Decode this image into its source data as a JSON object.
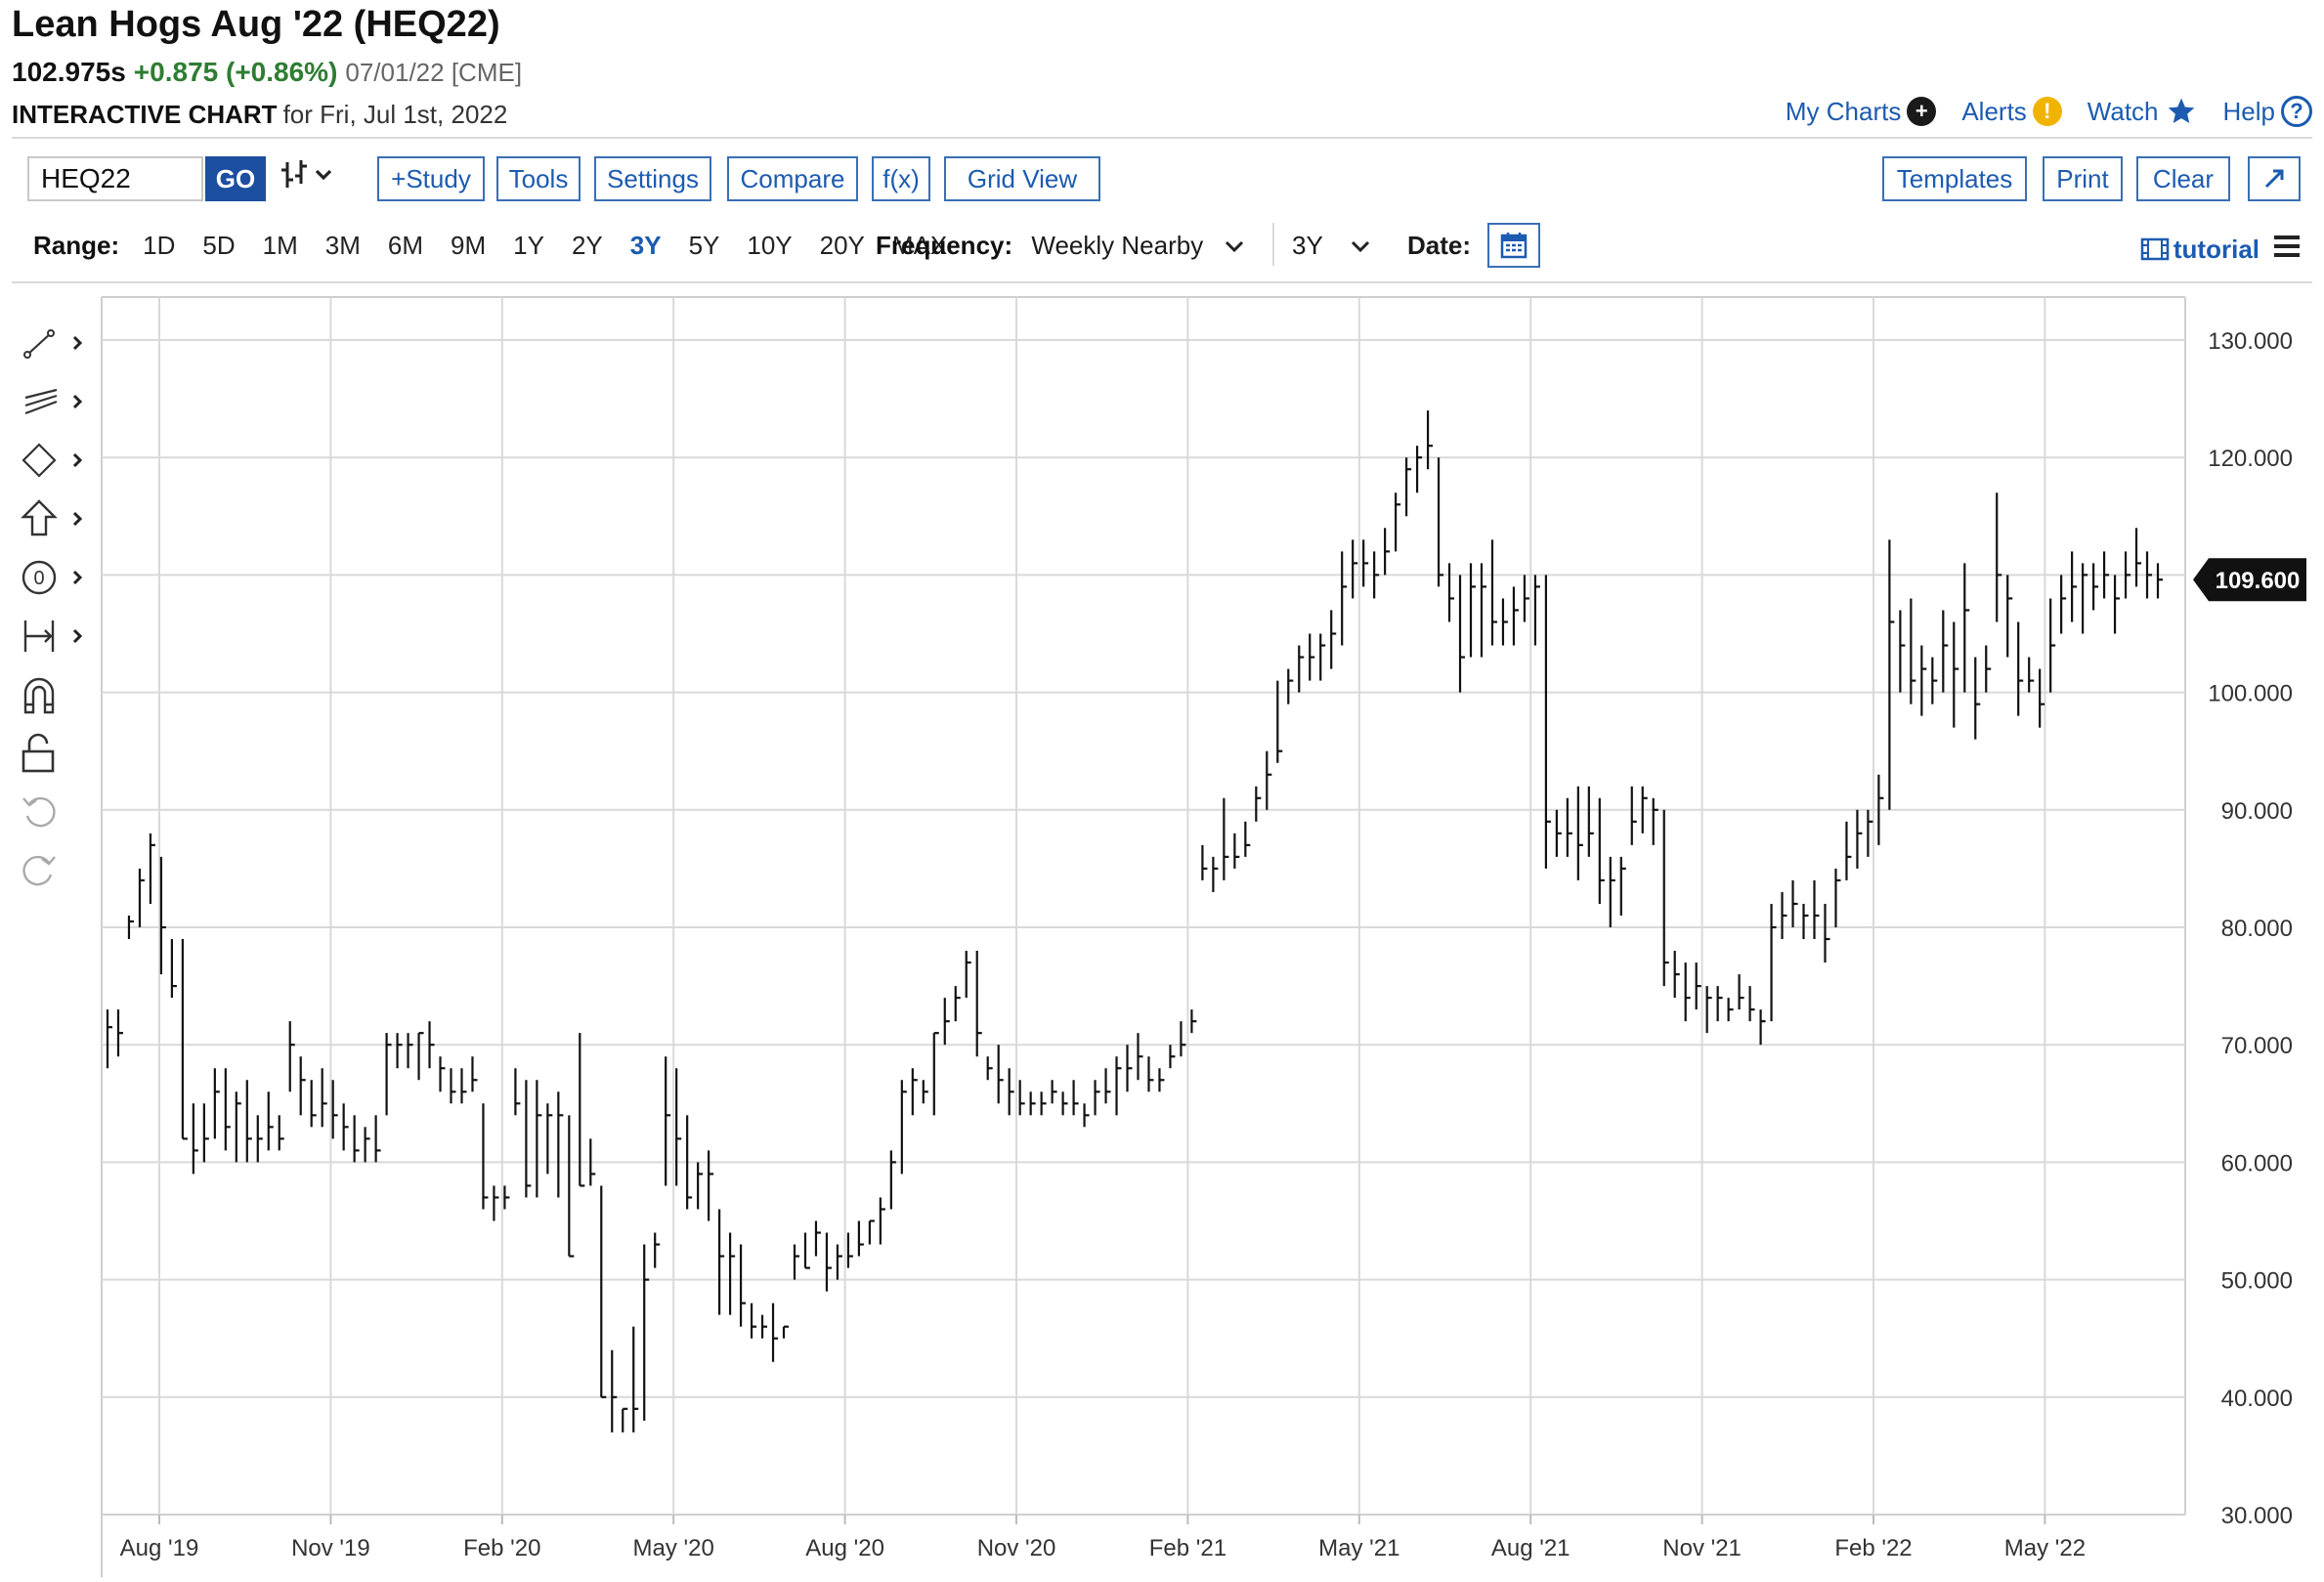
{
  "header": {
    "title": "Lean Hogs Aug '22 (HEQ22)",
    "last": "102.975s",
    "change": "+0.875 (+0.86%)",
    "meta": "07/01/22 [CME]",
    "interactive_label": "INTERACTIVE CHART",
    "date_text": "for Fri, Jul 1st, 2022"
  },
  "toplinks": {
    "my_charts": "My Charts",
    "alerts": "Alerts",
    "watch": "Watch",
    "help": "Help"
  },
  "toolbar": {
    "symbol": "HEQ22",
    "go": "GO",
    "bar_type_icon": "ohlc-bars-icon",
    "study": "+Study",
    "tools": "Tools",
    "settings": "Settings",
    "compare": "Compare",
    "fx": "f(x)",
    "grid_view": "Grid View",
    "templates": "Templates",
    "print": "Print",
    "clear": "Clear",
    "expand_icon": "expand-icon"
  },
  "range": {
    "label": "Range:",
    "options": [
      "1D",
      "5D",
      "1M",
      "3M",
      "6M",
      "9M",
      "1Y",
      "2Y",
      "3Y",
      "5Y",
      "10Y",
      "20Y",
      "MAX"
    ],
    "selected": "3Y"
  },
  "frequency": {
    "label": "Frequency:",
    "value": "Weekly Nearby",
    "period": "3Y"
  },
  "date": {
    "label": "Date:"
  },
  "tutorial": {
    "label": "tutorial"
  },
  "colors": {
    "link": "#1c5bb0",
    "change_positive": "#2e7d32",
    "grid": "#d9d9d9",
    "bars": "#111111",
    "go_button": "#1c4fa0",
    "alert": "#f0b400"
  },
  "chart_data": {
    "type": "ohlc",
    "frequency": "weekly",
    "ylim": [
      30,
      130
    ],
    "y_ticks": [
      "30.000",
      "40.000",
      "50.000",
      "60.000",
      "70.000",
      "80.000",
      "90.000",
      "100.000",
      "110.000",
      "120.000",
      "130.000"
    ],
    "x_ticks": [
      "Aug '19",
      "Nov '19",
      "Feb '20",
      "May '20",
      "Aug '20",
      "Nov '20",
      "Feb '21",
      "May '21",
      "Aug '21",
      "Nov '21",
      "Feb '22",
      "May '22"
    ],
    "last_price_label": "109.600",
    "last_price": 109.6,
    "grid": true,
    "bars": [
      [
        73,
        68,
        71.5
      ],
      [
        73,
        69,
        71
      ],
      [
        81,
        79,
        80.5
      ],
      [
        85,
        80,
        84
      ],
      [
        88,
        82,
        87
      ],
      [
        86,
        76,
        80
      ],
      [
        79,
        74,
        75
      ],
      [
        79,
        62,
        62
      ],
      [
        65,
        59,
        61
      ],
      [
        65,
        60,
        62
      ],
      [
        68,
        62,
        66
      ],
      [
        68,
        61,
        63
      ],
      [
        66,
        60,
        65
      ],
      [
        67,
        60,
        62
      ],
      [
        64,
        60,
        62
      ],
      [
        66,
        61,
        63
      ],
      [
        64,
        61,
        62
      ],
      [
        72,
        66,
        70
      ],
      [
        69,
        64,
        67
      ],
      [
        67,
        63,
        64
      ],
      [
        68,
        63,
        65
      ],
      [
        67,
        62,
        64
      ],
      [
        65,
        61,
        63
      ],
      [
        64,
        60,
        61
      ],
      [
        63,
        60,
        62
      ],
      [
        64,
        60,
        61
      ],
      [
        71,
        64,
        70
      ],
      [
        71,
        68,
        70
      ],
      [
        71,
        68,
        70
      ],
      [
        71,
        67,
        71
      ],
      [
        72,
        68,
        70
      ],
      [
        69,
        66,
        68
      ],
      [
        68,
        65,
        66
      ],
      [
        68,
        65,
        66
      ],
      [
        69,
        66,
        67
      ],
      [
        65,
        56,
        57
      ],
      [
        58,
        55,
        57
      ],
      [
        56,
        58,
        57
      ],
      [
        68,
        64,
        65
      ],
      [
        67,
        57,
        58
      ],
      [
        67,
        57,
        64
      ],
      [
        65,
        59,
        64
      ],
      [
        66,
        57,
        64
      ],
      [
        64,
        52,
        52
      ],
      [
        71,
        58,
        58
      ],
      [
        62,
        58,
        59
      ],
      [
        58,
        40,
        40
      ],
      [
        44,
        37,
        40
      ],
      [
        39,
        37,
        39
      ],
      [
        46,
        37,
        39
      ],
      [
        53,
        38,
        50
      ],
      [
        54,
        51,
        53
      ],
      [
        69,
        58,
        64
      ],
      [
        68,
        58,
        62
      ],
      [
        64,
        56,
        57
      ],
      [
        60,
        56,
        59
      ],
      [
        61,
        55,
        59
      ],
      [
        56,
        47,
        52
      ],
      [
        54,
        47,
        52
      ],
      [
        53,
        46,
        48
      ],
      [
        48,
        45,
        46
      ],
      [
        47,
        45,
        46
      ],
      [
        48,
        43,
        45
      ],
      [
        46,
        45,
        46
      ],
      [
        53,
        50,
        52
      ],
      [
        54,
        51,
        51
      ],
      [
        55,
        52,
        54
      ],
      [
        54,
        49,
        51
      ],
      [
        53,
        50,
        52
      ],
      [
        54,
        51,
        52
      ],
      [
        55,
        52,
        53
      ],
      [
        55,
        53,
        55
      ],
      [
        57,
        53,
        56
      ],
      [
        61,
        56,
        60
      ],
      [
        67,
        59,
        66
      ],
      [
        68,
        64,
        67
      ],
      [
        67,
        65,
        66
      ],
      [
        71,
        64,
        71
      ],
      [
        74,
        70,
        72
      ],
      [
        75,
        72,
        74
      ],
      [
        78,
        74,
        77
      ],
      [
        78,
        69,
        71
      ],
      [
        69,
        67,
        68
      ],
      [
        70,
        65,
        67
      ],
      [
        68,
        64,
        66
      ],
      [
        67,
        64,
        65
      ],
      [
        66,
        64,
        65
      ],
      [
        66,
        64,
        65
      ],
      [
        67,
        65,
        66
      ],
      [
        66,
        64,
        65
      ],
      [
        67,
        64,
        65
      ],
      [
        65,
        63,
        64
      ],
      [
        67,
        64,
        66
      ],
      [
        68,
        65,
        66
      ],
      [
        69,
        64,
        68
      ],
      [
        70,
        66,
        68
      ],
      [
        71,
        67,
        69
      ],
      [
        69,
        66,
        67
      ],
      [
        68,
        66,
        67
      ],
      [
        70,
        68,
        69
      ],
      [
        72,
        69,
        70
      ],
      [
        73,
        71,
        72
      ],
      [
        87,
        84,
        85
      ],
      [
        86,
        83,
        85
      ],
      [
        91,
        84,
        86
      ],
      [
        88,
        85,
        86
      ],
      [
        89,
        86,
        87
      ],
      [
        92,
        89,
        91
      ],
      [
        95,
        90,
        93
      ],
      [
        101,
        94,
        95
      ],
      [
        102,
        99,
        101
      ],
      [
        104,
        100,
        103
      ],
      [
        105,
        101,
        103
      ],
      [
        105,
        101,
        104
      ],
      [
        107,
        102,
        105
      ],
      [
        112,
        104,
        109
      ],
      [
        113,
        108,
        111
      ],
      [
        113,
        109,
        111
      ],
      [
        112,
        108,
        110
      ],
      [
        114,
        110,
        112
      ],
      [
        117,
        112,
        116
      ],
      [
        120,
        115,
        119
      ],
      [
        121,
        117,
        120
      ],
      [
        124,
        119,
        121
      ],
      [
        120,
        109,
        110
      ],
      [
        111,
        106,
        108
      ],
      [
        110,
        100,
        103
      ],
      [
        111,
        103,
        109
      ],
      [
        111,
        103,
        109
      ],
      [
        113,
        104,
        106
      ],
      [
        108,
        104,
        106
      ],
      [
        109,
        104,
        107
      ],
      [
        110,
        106,
        108
      ],
      [
        110,
        104,
        109
      ],
      [
        110,
        85,
        89
      ],
      [
        90,
        86,
        88
      ],
      [
        91,
        86,
        88
      ],
      [
        92,
        84,
        87
      ],
      [
        92,
        86,
        88
      ],
      [
        91,
        82,
        84
      ],
      [
        86,
        80,
        84
      ],
      [
        86,
        81,
        85
      ],
      [
        92,
        87,
        89
      ],
      [
        92,
        88,
        91
      ],
      [
        91,
        87,
        90
      ],
      [
        90,
        75,
        77
      ],
      [
        78,
        74,
        76
      ],
      [
        77,
        72,
        74
      ],
      [
        77,
        73,
        75
      ],
      [
        75,
        71,
        74
      ],
      [
        75,
        72,
        74
      ],
      [
        74,
        72,
        73
      ],
      [
        76,
        73,
        74
      ],
      [
        75,
        72,
        73
      ],
      [
        73,
        70,
        72
      ],
      [
        82,
        72,
        80
      ],
      [
        83,
        79,
        81
      ],
      [
        84,
        80,
        82
      ],
      [
        82,
        79,
        81
      ],
      [
        84,
        79,
        81
      ],
      [
        82,
        77,
        79
      ],
      [
        85,
        80,
        84
      ],
      [
        89,
        84,
        86
      ],
      [
        90,
        85,
        88
      ],
      [
        90,
        86,
        89
      ],
      [
        93,
        87,
        91
      ],
      [
        113,
        90,
        106
      ],
      [
        107,
        100,
        104
      ],
      [
        108,
        99,
        101
      ],
      [
        104,
        98,
        102
      ],
      [
        103,
        99,
        101
      ],
      [
        107,
        100,
        104
      ],
      [
        106,
        97,
        102
      ],
      [
        111,
        100,
        107
      ],
      [
        103,
        96,
        99
      ],
      [
        104,
        100,
        102
      ],
      [
        117,
        106,
        110
      ],
      [
        110,
        103,
        108
      ],
      [
        106,
        98,
        101
      ],
      [
        103,
        100,
        101
      ],
      [
        102,
        97,
        99
      ],
      [
        108,
        100,
        104
      ],
      [
        110,
        105,
        108
      ],
      [
        112,
        106,
        109
      ],
      [
        111,
        105,
        110
      ],
      [
        111,
        107,
        109
      ],
      [
        112,
        108,
        110
      ],
      [
        110,
        105,
        108
      ],
      [
        112,
        108,
        110
      ],
      [
        114,
        109,
        111
      ],
      [
        112,
        108,
        110
      ],
      [
        111,
        108,
        109.6
      ]
    ]
  }
}
